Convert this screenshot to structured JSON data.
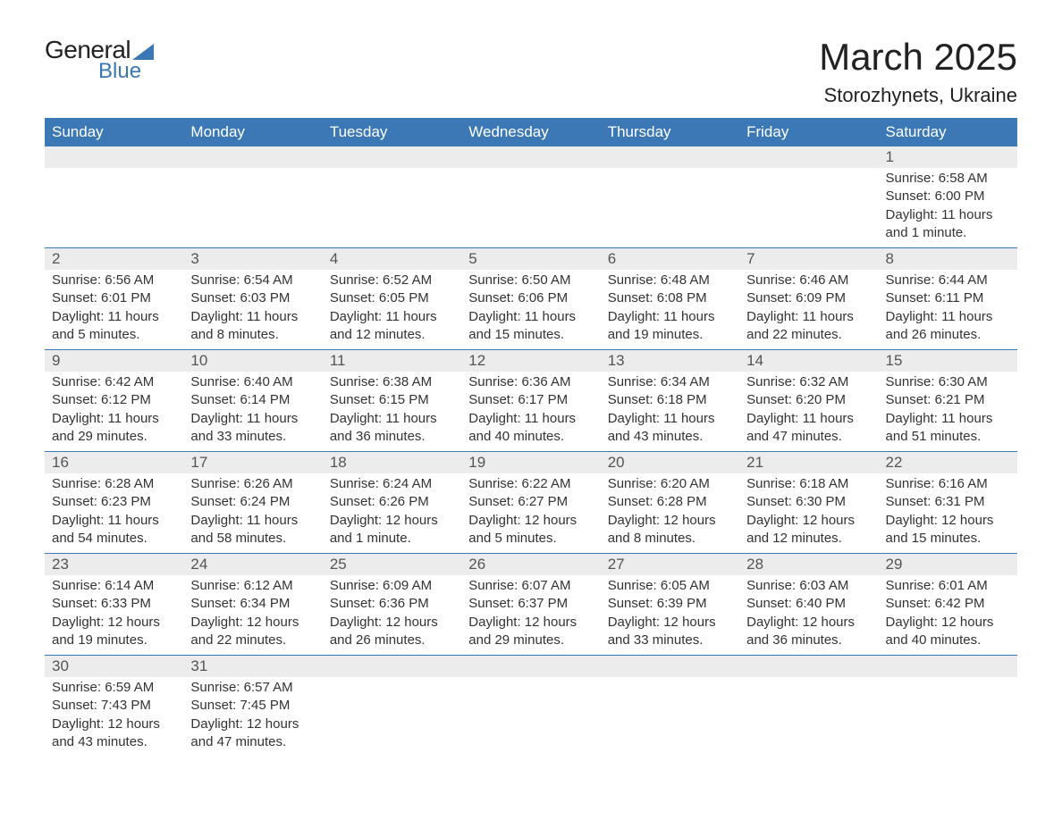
{
  "logo": {
    "text_general": "General",
    "text_blue": "Blue",
    "triangle_color": "#3b78b5"
  },
  "title": "March 2025",
  "location": "Storozhynets, Ukraine",
  "colors": {
    "header_bg": "#3b78b5",
    "header_text": "#ffffff",
    "daynum_bg": "#ececec",
    "border": "#3b78b5",
    "text": "#333333"
  },
  "day_headers": [
    "Sunday",
    "Monday",
    "Tuesday",
    "Wednesday",
    "Thursday",
    "Friday",
    "Saturday"
  ],
  "label_sunrise": "Sunrise:",
  "label_sunset": "Sunset:",
  "label_daylight": "Daylight:",
  "weeks": [
    [
      null,
      null,
      null,
      null,
      null,
      null,
      {
        "n": "1",
        "sr": "6:58 AM",
        "ss": "6:00 PM",
        "dl1": "11 hours",
        "dl2": "and 1 minute."
      }
    ],
    [
      {
        "n": "2",
        "sr": "6:56 AM",
        "ss": "6:01 PM",
        "dl1": "11 hours",
        "dl2": "and 5 minutes."
      },
      {
        "n": "3",
        "sr": "6:54 AM",
        "ss": "6:03 PM",
        "dl1": "11 hours",
        "dl2": "and 8 minutes."
      },
      {
        "n": "4",
        "sr": "6:52 AM",
        "ss": "6:05 PM",
        "dl1": "11 hours",
        "dl2": "and 12 minutes."
      },
      {
        "n": "5",
        "sr": "6:50 AM",
        "ss": "6:06 PM",
        "dl1": "11 hours",
        "dl2": "and 15 minutes."
      },
      {
        "n": "6",
        "sr": "6:48 AM",
        "ss": "6:08 PM",
        "dl1": "11 hours",
        "dl2": "and 19 minutes."
      },
      {
        "n": "7",
        "sr": "6:46 AM",
        "ss": "6:09 PM",
        "dl1": "11 hours",
        "dl2": "and 22 minutes."
      },
      {
        "n": "8",
        "sr": "6:44 AM",
        "ss": "6:11 PM",
        "dl1": "11 hours",
        "dl2": "and 26 minutes."
      }
    ],
    [
      {
        "n": "9",
        "sr": "6:42 AM",
        "ss": "6:12 PM",
        "dl1": "11 hours",
        "dl2": "and 29 minutes."
      },
      {
        "n": "10",
        "sr": "6:40 AM",
        "ss": "6:14 PM",
        "dl1": "11 hours",
        "dl2": "and 33 minutes."
      },
      {
        "n": "11",
        "sr": "6:38 AM",
        "ss": "6:15 PM",
        "dl1": "11 hours",
        "dl2": "and 36 minutes."
      },
      {
        "n": "12",
        "sr": "6:36 AM",
        "ss": "6:17 PM",
        "dl1": "11 hours",
        "dl2": "and 40 minutes."
      },
      {
        "n": "13",
        "sr": "6:34 AM",
        "ss": "6:18 PM",
        "dl1": "11 hours",
        "dl2": "and 43 minutes."
      },
      {
        "n": "14",
        "sr": "6:32 AM",
        "ss": "6:20 PM",
        "dl1": "11 hours",
        "dl2": "and 47 minutes."
      },
      {
        "n": "15",
        "sr": "6:30 AM",
        "ss": "6:21 PM",
        "dl1": "11 hours",
        "dl2": "and 51 minutes."
      }
    ],
    [
      {
        "n": "16",
        "sr": "6:28 AM",
        "ss": "6:23 PM",
        "dl1": "11 hours",
        "dl2": "and 54 minutes."
      },
      {
        "n": "17",
        "sr": "6:26 AM",
        "ss": "6:24 PM",
        "dl1": "11 hours",
        "dl2": "and 58 minutes."
      },
      {
        "n": "18",
        "sr": "6:24 AM",
        "ss": "6:26 PM",
        "dl1": "12 hours",
        "dl2": "and 1 minute."
      },
      {
        "n": "19",
        "sr": "6:22 AM",
        "ss": "6:27 PM",
        "dl1": "12 hours",
        "dl2": "and 5 minutes."
      },
      {
        "n": "20",
        "sr": "6:20 AM",
        "ss": "6:28 PM",
        "dl1": "12 hours",
        "dl2": "and 8 minutes."
      },
      {
        "n": "21",
        "sr": "6:18 AM",
        "ss": "6:30 PM",
        "dl1": "12 hours",
        "dl2": "and 12 minutes."
      },
      {
        "n": "22",
        "sr": "6:16 AM",
        "ss": "6:31 PM",
        "dl1": "12 hours",
        "dl2": "and 15 minutes."
      }
    ],
    [
      {
        "n": "23",
        "sr": "6:14 AM",
        "ss": "6:33 PM",
        "dl1": "12 hours",
        "dl2": "and 19 minutes."
      },
      {
        "n": "24",
        "sr": "6:12 AM",
        "ss": "6:34 PM",
        "dl1": "12 hours",
        "dl2": "and 22 minutes."
      },
      {
        "n": "25",
        "sr": "6:09 AM",
        "ss": "6:36 PM",
        "dl1": "12 hours",
        "dl2": "and 26 minutes."
      },
      {
        "n": "26",
        "sr": "6:07 AM",
        "ss": "6:37 PM",
        "dl1": "12 hours",
        "dl2": "and 29 minutes."
      },
      {
        "n": "27",
        "sr": "6:05 AM",
        "ss": "6:39 PM",
        "dl1": "12 hours",
        "dl2": "and 33 minutes."
      },
      {
        "n": "28",
        "sr": "6:03 AM",
        "ss": "6:40 PM",
        "dl1": "12 hours",
        "dl2": "and 36 minutes."
      },
      {
        "n": "29",
        "sr": "6:01 AM",
        "ss": "6:42 PM",
        "dl1": "12 hours",
        "dl2": "and 40 minutes."
      }
    ],
    [
      {
        "n": "30",
        "sr": "6:59 AM",
        "ss": "7:43 PM",
        "dl1": "12 hours",
        "dl2": "and 43 minutes."
      },
      {
        "n": "31",
        "sr": "6:57 AM",
        "ss": "7:45 PM",
        "dl1": "12 hours",
        "dl2": "and 47 minutes."
      },
      null,
      null,
      null,
      null,
      null
    ]
  ]
}
